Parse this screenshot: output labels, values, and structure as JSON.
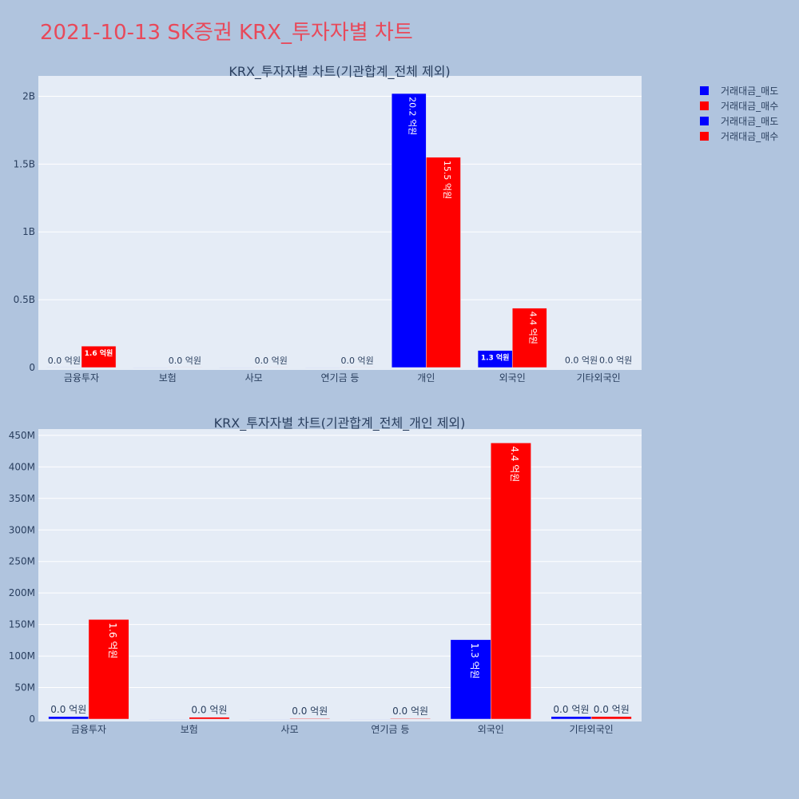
{
  "page_title": "2021-10-13 SK증권 KRX_투자자별 차트",
  "colors": {
    "sell": "#0000ff",
    "buy": "#ff0000",
    "background": "#b0c4de",
    "plot_background": "#e5ecf6",
    "title": "#e8495a"
  },
  "legend": {
    "placement": "top-right",
    "items": [
      {
        "label": "거래대금_매도",
        "color": "#0000ff"
      },
      {
        "label": "거래대금_매수",
        "color": "#ff0000"
      },
      {
        "label": "거래대금_매도",
        "color": "#0000ff"
      },
      {
        "label": "거래대금_매수",
        "color": "#ff0000"
      }
    ]
  },
  "chart_data": [
    {
      "type": "bar",
      "title": "KRX_투자자별 차트(기관합계_전체 제외)",
      "categories": [
        "금융투자",
        "보험",
        "사모",
        "연기금 등",
        "개인",
        "외국인",
        "기타외국인"
      ],
      "series": [
        {
          "name": "거래대금_매도",
          "color": "#0000ff",
          "values": [
            1000000,
            0,
            0,
            0,
            2020000000,
            126000000,
            2000000
          ],
          "labels": [
            "0.0 억원",
            "",
            "",
            "",
            "20.2 억원",
            "1.3 억원",
            "0.0 억원"
          ]
        },
        {
          "name": "거래대금_매수",
          "color": "#ff0000",
          "values": [
            158000000,
            1000000,
            1000000,
            1000000,
            1550000000,
            438000000,
            2000000
          ],
          "labels": [
            "1.6 억원",
            "0.0 억원",
            "0.0 억원",
            "0.0 억원",
            "15.5 억원",
            "4.4 억원",
            "0.0 억원"
          ]
        }
      ],
      "ylim": [
        0,
        2150000000
      ],
      "yticks": [
        0,
        500000000,
        1000000000,
        1500000000,
        2000000000
      ],
      "ytick_labels": [
        "0",
        "0.5B",
        "1B",
        "1.5B",
        "2B"
      ],
      "grid": true
    },
    {
      "type": "bar",
      "title": "KRX_투자자별 차트(기관합계_전체_개인 제외)",
      "categories": [
        "금융투자",
        "보험",
        "사모",
        "연기금 등",
        "외국인",
        "기타외국인"
      ],
      "series": [
        {
          "name": "거래대금_매도",
          "color": "#0000ff",
          "values": [
            4000000,
            0,
            0,
            0,
            126000000,
            4000000
          ],
          "labels": [
            "0.0 억원",
            "",
            "",
            "",
            "1.3 억원",
            "0.0 억원"
          ]
        },
        {
          "name": "거래대금_매수",
          "color": "#ff0000",
          "values": [
            158000000,
            3000000,
            1000000,
            1000000,
            438000000,
            4000000
          ],
          "labels": [
            "1.6 억원",
            "0.0 억원",
            "0.0 억원",
            "0.0 억원",
            "4.4 억원",
            "0.0 억원"
          ]
        }
      ],
      "ylim": [
        0,
        460000000
      ],
      "yticks": [
        0,
        50000000,
        100000000,
        150000000,
        200000000,
        250000000,
        300000000,
        350000000,
        400000000,
        450000000
      ],
      "ytick_labels": [
        "0",
        "50M",
        "100M",
        "150M",
        "200M",
        "250M",
        "300M",
        "350M",
        "400M",
        "450M"
      ],
      "grid": true
    }
  ]
}
